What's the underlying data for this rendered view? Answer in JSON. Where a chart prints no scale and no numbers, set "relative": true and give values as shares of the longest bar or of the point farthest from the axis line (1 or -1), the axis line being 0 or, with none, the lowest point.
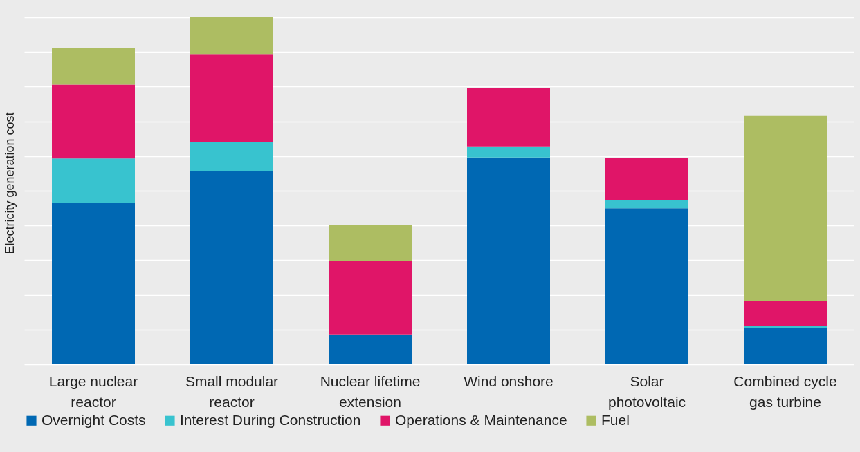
{
  "chart_data": {
    "type": "bar",
    "stacked": true,
    "relative": true,
    "ylabel": "Electricity generation cost",
    "categories": [
      "Large nuclear reactor",
      "Small modular reactor",
      "Nuclear lifetime extension",
      "Wind onshore",
      "Solar photovoltaic",
      "Combined cycle gas turbine"
    ],
    "series": [
      {
        "name": "Overnight Costs",
        "color": "#0068b3",
        "values": [
          0.466,
          0.557,
          0.084,
          0.596,
          0.45,
          0.104
        ]
      },
      {
        "name": "Interest During Construction",
        "color": "#38c3cf",
        "values": [
          0.127,
          0.084,
          0.002,
          0.032,
          0.024,
          0.006
        ]
      },
      {
        "name": "Operations & Maintenance",
        "color": "#e01568",
        "values": [
          0.213,
          0.253,
          0.211,
          0.167,
          0.12,
          0.072
        ]
      },
      {
        "name": "Fuel",
        "color": "#adbd62",
        "values": [
          0.106,
          0.106,
          0.104,
          0,
          0,
          0.534
        ]
      }
    ],
    "grid": "y",
    "legend": "bottom"
  }
}
